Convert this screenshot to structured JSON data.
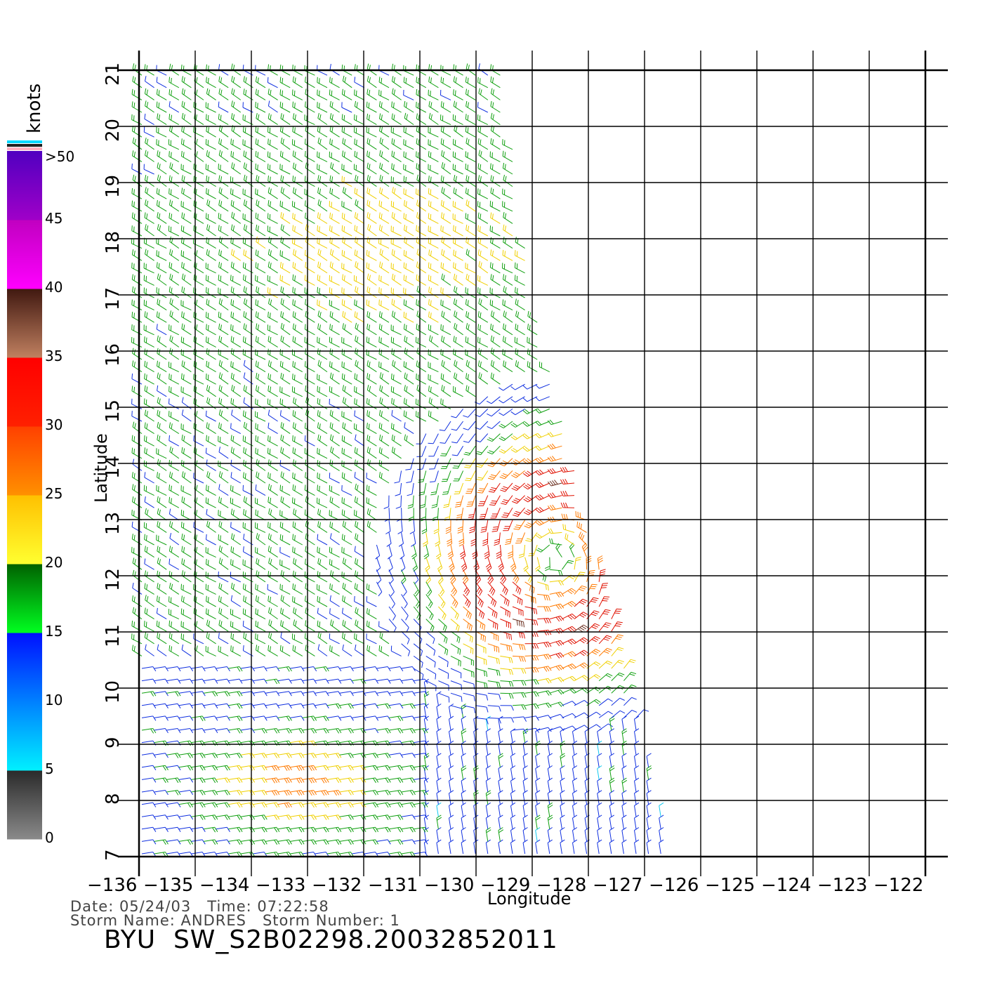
{
  "map": {
    "xlabel": "Longitude",
    "ylabel": "Latitude",
    "lon_range": [
      -136,
      -122
    ],
    "lat_range": [
      7,
      21
    ],
    "lon_ticks": [
      "−136",
      "−135",
      "−134",
      "−133",
      "−132",
      "−131",
      "−130",
      "−129",
      "−128",
      "−127",
      "−126",
      "−125",
      "−124",
      "−123",
      "−122"
    ],
    "lat_ticks": [
      "7",
      "8",
      "9",
      "10",
      "11",
      "12",
      "13",
      "14",
      "15",
      "16",
      "17",
      "18",
      "19",
      "20",
      "21"
    ],
    "swath_edge_lon": [
      {
        "lat": 21,
        "lon": -129.5
      },
      {
        "lat": 17,
        "lon": -129
      },
      {
        "lat": 13,
        "lon": -128
      },
      {
        "lat": 7,
        "lon": -126.5
      }
    ],
    "storm_center": {
      "lat": 12.3,
      "lon": -128.6
    }
  },
  "colorbar": {
    "unit": "knots",
    "labels": [
      ">50",
      "45",
      "40",
      "35",
      "30",
      "25",
      "20",
      "15",
      "10",
      "5",
      "0"
    ],
    "colors": {
      "0-5": "#808080",
      "5-10": "#00d8ff",
      "10-15": "#0050ff",
      "15-20": "#00c000",
      "20-25": "#ffd400",
      "25-30": "#ff7a00",
      "30-35": "#ff1a00",
      "35-40": "#6b3020",
      "40-45": "#ff00ff",
      "45-50": "#8000d0"
    }
  },
  "info": {
    "line1": "Date: 05/24/03   Time: 07:22:58",
    "line2": "Storm Name: ANDRES   Storm Number: 1",
    "title": "BYU  SW_S2B02298.20032852011"
  }
}
